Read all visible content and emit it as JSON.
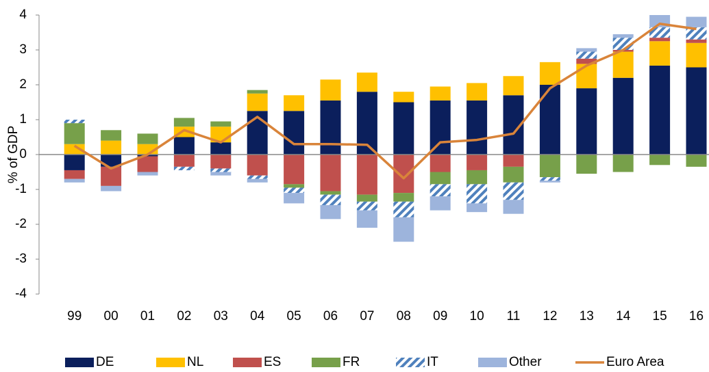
{
  "chart_data": {
    "type": "bar",
    "stacked": true,
    "y_label": "% of GDP",
    "categories": [
      "99",
      "00",
      "01",
      "02",
      "03",
      "04",
      "05",
      "06",
      "07",
      "08",
      "09",
      "10",
      "11",
      "12",
      "13",
      "14",
      "15",
      "16"
    ],
    "ylim": [
      -4,
      4
    ],
    "yticks": [
      -4,
      -3,
      -2,
      -1,
      0,
      1,
      2,
      3,
      4
    ],
    "grid": false,
    "legend": "bottom",
    "series": [
      {
        "name": "DE",
        "color": "#0b1f5c",
        "values": [
          -0.45,
          -0.35,
          -0.05,
          0.5,
          0.35,
          1.25,
          1.25,
          1.55,
          1.8,
          1.5,
          1.55,
          1.55,
          1.7,
          2.0,
          1.9,
          2.2,
          2.55,
          2.5
        ]
      },
      {
        "name": "NL",
        "color": "#ffc000",
        "values": [
          0.3,
          0.4,
          0.3,
          0.3,
          0.45,
          0.5,
          0.45,
          0.6,
          0.55,
          0.3,
          0.4,
          0.5,
          0.55,
          0.65,
          0.7,
          0.75,
          0.7,
          0.7
        ]
      },
      {
        "name": "ES",
        "color": "#c0504d",
        "values": [
          -0.25,
          -0.55,
          -0.45,
          -0.35,
          -0.4,
          -0.6,
          -0.85,
          -1.05,
          -1.15,
          -1.1,
          -0.5,
          -0.45,
          -0.35,
          0,
          0.15,
          0.05,
          0.1,
          0.1
        ]
      },
      {
        "name": "FR",
        "color": "#77a04a",
        "values": [
          0.6,
          0.3,
          0.3,
          0.25,
          0.15,
          0.1,
          -0.1,
          -0.1,
          -0.2,
          -0.25,
          -0.35,
          -0.4,
          -0.45,
          -0.65,
          -0.55,
          -0.5,
          -0.3,
          -0.35
        ]
      },
      {
        "name": "IT",
        "color": "#4f81bd",
        "hatch": true,
        "values": [
          0.1,
          0,
          0,
          -0.1,
          -0.1,
          -0.1,
          -0.15,
          -0.3,
          -0.25,
          -0.45,
          -0.35,
          -0.55,
          -0.5,
          -0.1,
          0.2,
          0.35,
          0.3,
          0.35
        ]
      },
      {
        "name": "Other",
        "color": "#9db4dc",
        "values": [
          -0.1,
          -0.15,
          -0.1,
          0,
          -0.1,
          -0.1,
          -0.3,
          -0.4,
          -0.5,
          -0.7,
          -0.4,
          -0.25,
          -0.4,
          -0.05,
          0.1,
          0.1,
          0.35,
          0.3
        ]
      },
      {
        "name": "Euro Area",
        "type": "line",
        "color": "#d9843a",
        "values": [
          0.25,
          -0.4,
          0.0,
          0.7,
          0.35,
          1.08,
          0.3,
          0.3,
          0.28,
          -0.68,
          0.35,
          0.42,
          0.6,
          1.9,
          2.55,
          3.0,
          3.75,
          3.6
        ]
      }
    ]
  }
}
